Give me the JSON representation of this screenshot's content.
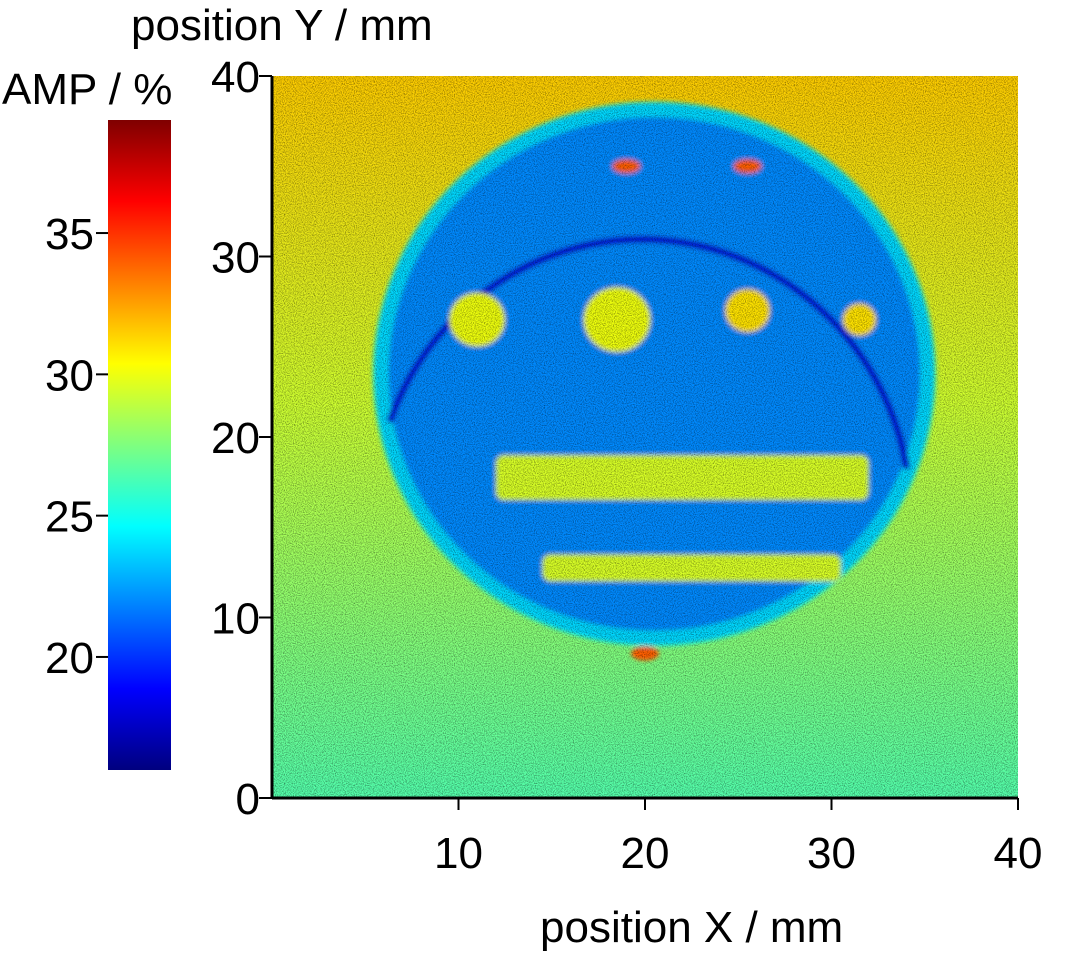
{
  "chart_data": {
    "type": "heatmap",
    "title": "",
    "xlabel": "position X / mm",
    "ylabel": "position Y / mm",
    "xlim": [
      0,
      40
    ],
    "ylim": [
      0,
      40
    ],
    "x_ticks": [
      10,
      20,
      30,
      40
    ],
    "y_ticks": [
      0,
      10,
      20,
      30,
      40
    ],
    "colorbar": {
      "label": "AMP / %",
      "range": [
        16,
        39
      ],
      "ticks": [
        20,
        25,
        30,
        35
      ],
      "colormap": "jet",
      "stops": [
        "#00007f",
        "#0000ff",
        "#007fff",
        "#00ffff",
        "#7fff7f",
        "#ffff00",
        "#ff7f00",
        "#ff0000",
        "#7f0000"
      ]
    },
    "background_levels": {
      "top_edge": 31.5,
      "bottom_edge": 26.5
    },
    "features": [
      {
        "name": "disc",
        "shape": "circle",
        "center": [
          20.5,
          23.5
        ],
        "radius": 15,
        "value": 22
      },
      {
        "name": "disc edge",
        "shape": "arc",
        "value": 18
      },
      {
        "name": "dot 1",
        "shape": "circle",
        "center": [
          11,
          26.5
        ],
        "radius": 1.5,
        "value": 30
      },
      {
        "name": "dot 2",
        "shape": "circle",
        "center": [
          18.5,
          26.5
        ],
        "radius": 1.8,
        "value": 30
      },
      {
        "name": "dot 3",
        "shape": "circle",
        "center": [
          25.5,
          27
        ],
        "radius": 1.2,
        "value": 31
      },
      {
        "name": "dot 4",
        "shape": "circle",
        "center": [
          31.5,
          26.5
        ],
        "radius": 0.9,
        "value": 31
      },
      {
        "name": "bar 1",
        "shape": "rect",
        "x": [
          12,
          32
        ],
        "y": [
          16.5,
          19
        ],
        "value": 29.5
      },
      {
        "name": "bar 2",
        "shape": "rect",
        "x": [
          14.5,
          30.5
        ],
        "y": [
          12,
          13.5
        ],
        "value": 29.5
      },
      {
        "name": "rim hotspots",
        "shape": "points",
        "points": [
          [
            19,
            35
          ],
          [
            25.5,
            35
          ],
          [
            20,
            8
          ]
        ],
        "value": 34
      }
    ]
  }
}
